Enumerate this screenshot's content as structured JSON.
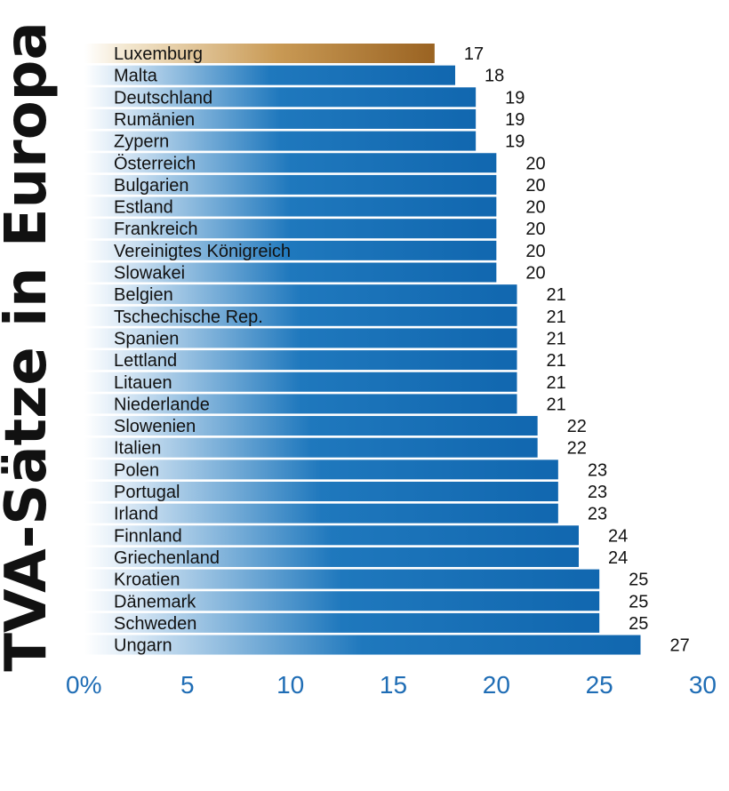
{
  "chart_data": {
    "type": "bar",
    "orientation": "horizontal",
    "title": "TVA-Sätze in Europa",
    "xlabel": "",
    "ylabel": "",
    "xlim": [
      0,
      30
    ],
    "x_tick_labels": [
      "0%",
      "5",
      "10",
      "15",
      "20",
      "25",
      "30"
    ],
    "x_ticks": [
      0,
      5,
      10,
      15,
      20,
      25,
      30
    ],
    "categories": [
      "Luxemburg",
      "Malta",
      "Deutschland",
      "Rumänien",
      "Zypern",
      "Österreich",
      "Bulgarien",
      "Estland",
      "Frankreich",
      "Vereinigtes Königreich",
      "Slowakei",
      "Belgien",
      "Tschechische Rep.",
      "Spanien",
      "Lettland",
      "Litauen",
      "Niederlande",
      "Slowenien",
      "Italien",
      "Polen",
      "Portugal",
      "Irland",
      "Finnland",
      "Griechenland",
      "Kroatien",
      "Dänemark",
      "Schweden",
      "Ungarn"
    ],
    "values": [
      17,
      18,
      19,
      19,
      19,
      20,
      20,
      20,
      20,
      20,
      20,
      21,
      21,
      21,
      21,
      21,
      21,
      22,
      22,
      23,
      23,
      23,
      24,
      24,
      25,
      25,
      25,
      27
    ],
    "highlight": "Luxemburg",
    "colors": {
      "bar": "#1872b6",
      "highlight": "#a8722a",
      "tick": "#1f6db5",
      "text": "#111111"
    }
  }
}
